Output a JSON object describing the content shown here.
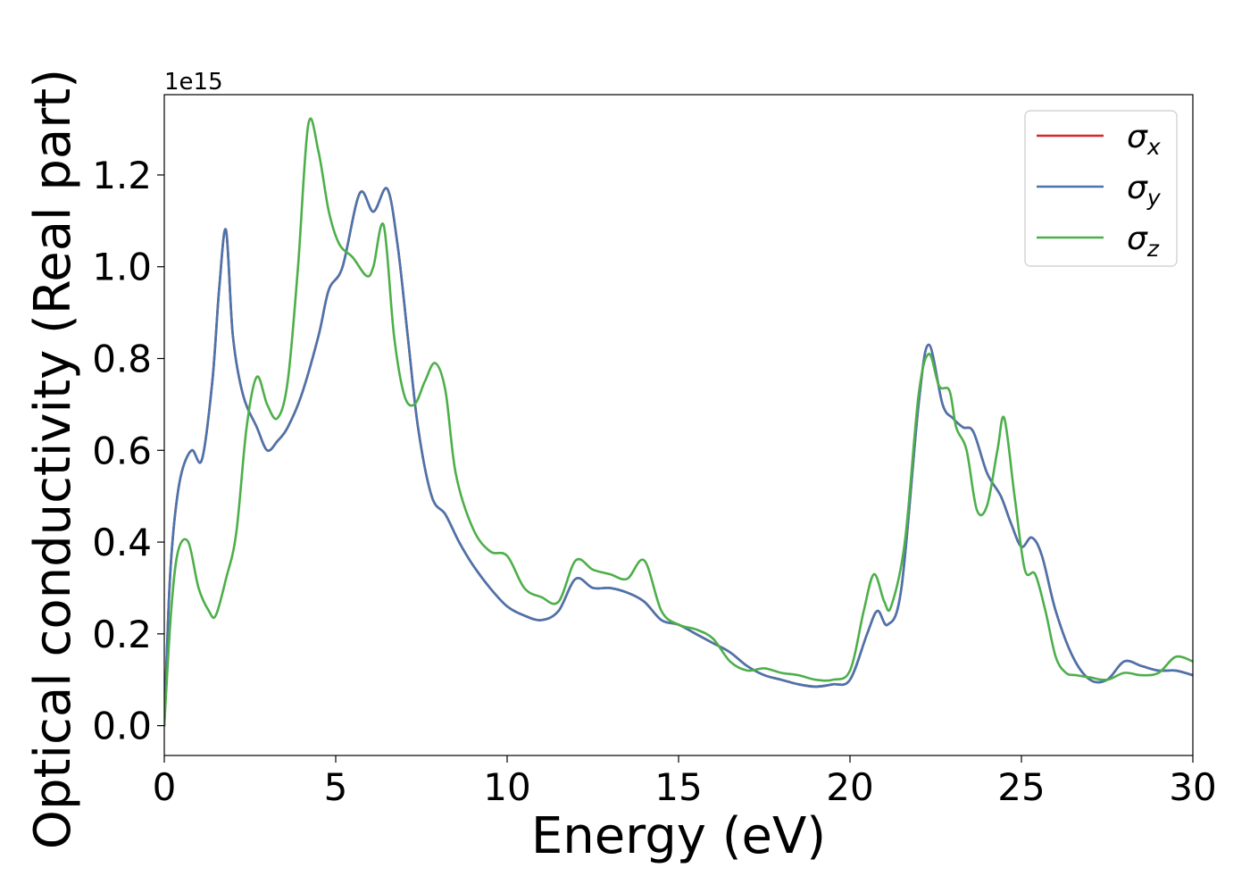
{
  "chart_data": {
    "type": "line",
    "xlabel": "Energy (eV)",
    "ylabel": "Optical conductivity (Real part)",
    "offset_text": "1e15",
    "xlim": [
      0,
      30
    ],
    "ylim": [
      -0.065,
      1.375
    ],
    "xticks": [
      0,
      5,
      10,
      15,
      20,
      25,
      30
    ],
    "xtick_labels": [
      "0",
      "5",
      "10",
      "15",
      "20",
      "25",
      "30"
    ],
    "yticks": [
      0.0,
      0.2,
      0.4,
      0.6,
      0.8,
      1.0,
      1.2
    ],
    "ytick_labels": [
      "0.0",
      "0.2",
      "0.4",
      "0.6",
      "0.8",
      "1.0",
      "1.2"
    ],
    "grid": false,
    "legend_position": "top-right",
    "series": [
      {
        "name": "σx",
        "label_main": "σ",
        "label_sub": "x",
        "color": "#d62728",
        "x": [
          0,
          0.15,
          0.3,
          0.5,
          0.8,
          1.1,
          1.4,
          1.6,
          1.8,
          2.0,
          2.3,
          2.7,
          3.0,
          3.3,
          3.6,
          4.0,
          4.5,
          4.8,
          5.2,
          5.7,
          6.1,
          6.5,
          6.8,
          7.1,
          7.4,
          7.8,
          8.2,
          8.6,
          9.0,
          9.5,
          10.0,
          10.5,
          11.0,
          11.5,
          12.0,
          12.5,
          13.0,
          13.5,
          14.0,
          14.5,
          15.0,
          15.5,
          16.0,
          16.5,
          17.0,
          17.5,
          18.0,
          18.5,
          19.0,
          19.5,
          20.0,
          20.5,
          20.8,
          21.1,
          21.5,
          22.0,
          22.3,
          22.7,
          23.0,
          23.3,
          23.6,
          24.0,
          24.4,
          24.7,
          25.0,
          25.3,
          25.6,
          26.0,
          26.5,
          27.0,
          27.5,
          28.0,
          28.5,
          29.0,
          29.5,
          30.0
        ],
        "values": [
          0.0,
          0.3,
          0.45,
          0.55,
          0.6,
          0.58,
          0.75,
          0.95,
          1.08,
          0.85,
          0.72,
          0.65,
          0.6,
          0.62,
          0.65,
          0.72,
          0.85,
          0.95,
          1.0,
          1.16,
          1.12,
          1.17,
          1.05,
          0.85,
          0.65,
          0.5,
          0.46,
          0.4,
          0.35,
          0.3,
          0.26,
          0.24,
          0.23,
          0.25,
          0.32,
          0.3,
          0.3,
          0.29,
          0.27,
          0.23,
          0.22,
          0.2,
          0.18,
          0.16,
          0.13,
          0.11,
          0.1,
          0.09,
          0.085,
          0.09,
          0.1,
          0.2,
          0.25,
          0.22,
          0.3,
          0.7,
          0.83,
          0.7,
          0.67,
          0.65,
          0.64,
          0.55,
          0.5,
          0.44,
          0.39,
          0.41,
          0.37,
          0.25,
          0.15,
          0.1,
          0.1,
          0.14,
          0.13,
          0.12,
          0.12,
          0.11
        ]
      },
      {
        "name": "σy",
        "label_main": "σ",
        "label_sub": "y",
        "color": "#4a74ac",
        "x": [
          0,
          0.15,
          0.3,
          0.5,
          0.8,
          1.1,
          1.4,
          1.6,
          1.8,
          2.0,
          2.3,
          2.7,
          3.0,
          3.3,
          3.6,
          4.0,
          4.5,
          4.8,
          5.2,
          5.7,
          6.1,
          6.5,
          6.8,
          7.1,
          7.4,
          7.8,
          8.2,
          8.6,
          9.0,
          9.5,
          10.0,
          10.5,
          11.0,
          11.5,
          12.0,
          12.5,
          13.0,
          13.5,
          14.0,
          14.5,
          15.0,
          15.5,
          16.0,
          16.5,
          17.0,
          17.5,
          18.0,
          18.5,
          19.0,
          19.5,
          20.0,
          20.5,
          20.8,
          21.1,
          21.5,
          22.0,
          22.3,
          22.7,
          23.0,
          23.3,
          23.6,
          24.0,
          24.4,
          24.7,
          25.0,
          25.3,
          25.6,
          26.0,
          26.5,
          27.0,
          27.5,
          28.0,
          28.5,
          29.0,
          29.5,
          30.0
        ],
        "values": [
          0.0,
          0.3,
          0.45,
          0.55,
          0.6,
          0.58,
          0.75,
          0.95,
          1.08,
          0.85,
          0.72,
          0.65,
          0.6,
          0.62,
          0.65,
          0.72,
          0.85,
          0.95,
          1.0,
          1.16,
          1.12,
          1.17,
          1.05,
          0.85,
          0.65,
          0.5,
          0.46,
          0.4,
          0.35,
          0.3,
          0.26,
          0.24,
          0.23,
          0.25,
          0.32,
          0.3,
          0.3,
          0.29,
          0.27,
          0.23,
          0.22,
          0.2,
          0.18,
          0.16,
          0.13,
          0.11,
          0.1,
          0.09,
          0.085,
          0.09,
          0.1,
          0.2,
          0.25,
          0.22,
          0.3,
          0.7,
          0.83,
          0.7,
          0.67,
          0.65,
          0.64,
          0.55,
          0.5,
          0.44,
          0.39,
          0.41,
          0.37,
          0.25,
          0.15,
          0.1,
          0.1,
          0.14,
          0.13,
          0.12,
          0.12,
          0.11
        ]
      },
      {
        "name": "σz",
        "label_main": "σ",
        "label_sub": "z",
        "color": "#4daf4a",
        "x": [
          0,
          0.2,
          0.4,
          0.7,
          1.0,
          1.3,
          1.5,
          1.8,
          2.1,
          2.4,
          2.7,
          3.0,
          3.3,
          3.6,
          3.9,
          4.2,
          4.5,
          4.8,
          5.1,
          5.5,
          5.9,
          6.1,
          6.4,
          6.7,
          7.0,
          7.3,
          7.6,
          7.9,
          8.2,
          8.5,
          9.0,
          9.5,
          10.0,
          10.5,
          11.0,
          11.5,
          12.0,
          12.5,
          13.0,
          13.5,
          14.0,
          14.5,
          15.0,
          15.5,
          16.0,
          16.5,
          17.0,
          17.5,
          18.0,
          18.5,
          19.0,
          19.5,
          20.0,
          20.4,
          20.7,
          21.0,
          21.2,
          21.6,
          22.0,
          22.3,
          22.6,
          22.9,
          23.1,
          23.4,
          23.7,
          24.0,
          24.3,
          24.5,
          24.8,
          25.1,
          25.4,
          25.7,
          26.0,
          26.3,
          26.6,
          27.0,
          27.5,
          28.0,
          28.5,
          29.0,
          29.5,
          30.0
        ],
        "values": [
          0.0,
          0.25,
          0.38,
          0.4,
          0.3,
          0.25,
          0.24,
          0.32,
          0.42,
          0.65,
          0.76,
          0.7,
          0.67,
          0.75,
          1.0,
          1.31,
          1.25,
          1.12,
          1.05,
          1.02,
          0.98,
          1.0,
          1.09,
          0.85,
          0.72,
          0.7,
          0.75,
          0.79,
          0.73,
          0.55,
          0.43,
          0.38,
          0.37,
          0.3,
          0.28,
          0.27,
          0.36,
          0.34,
          0.33,
          0.32,
          0.36,
          0.25,
          0.22,
          0.21,
          0.19,
          0.14,
          0.12,
          0.125,
          0.115,
          0.11,
          0.1,
          0.1,
          0.12,
          0.25,
          0.33,
          0.27,
          0.26,
          0.4,
          0.72,
          0.81,
          0.74,
          0.73,
          0.65,
          0.6,
          0.47,
          0.48,
          0.6,
          0.67,
          0.5,
          0.34,
          0.33,
          0.25,
          0.15,
          0.115,
          0.11,
          0.105,
          0.1,
          0.115,
          0.11,
          0.115,
          0.15,
          0.14
        ]
      }
    ]
  }
}
